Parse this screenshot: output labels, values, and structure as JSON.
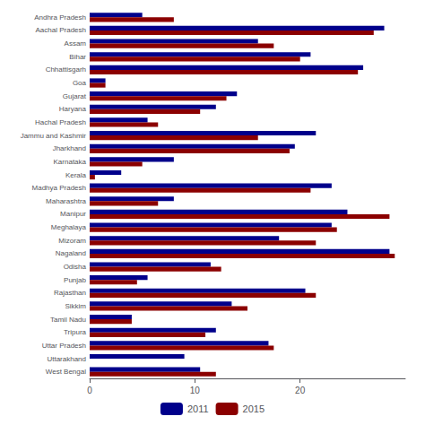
{
  "chart_data": {
    "type": "bar",
    "orientation": "horizontal",
    "categories": [
      "Andhra Pradesh",
      "Aachal Pradesh",
      "Assam",
      "Bihar",
      "Chhattisgarh",
      "Goa",
      "Gujarat",
      "Haryana",
      "Hachal Pradesh",
      "Jammu and Kashmir",
      "Jharkhand",
      "Karnataka",
      "Kerala",
      "Madhya Pradesh",
      "Maharashtra",
      "Manipur",
      "Meghalaya",
      "Mizoram",
      "Nagaland",
      "Odisha",
      "Punjab",
      "Rajasthan",
      "Sikkim",
      "Tamil Nadu",
      "Tripura",
      "Uttar Pradesh",
      "Uttarakhand",
      "West Bengal"
    ],
    "series": [
      {
        "name": "2011",
        "color": "#00008B",
        "values": [
          5.0,
          28.0,
          16.0,
          21.0,
          26.0,
          1.5,
          14.0,
          12.0,
          5.5,
          21.5,
          19.5,
          8.0,
          3.0,
          23.0,
          8.0,
          24.5,
          23.0,
          18.0,
          28.5,
          11.5,
          5.5,
          20.5,
          13.5,
          4.0,
          12.0,
          17.0,
          9.0,
          10.5
        ]
      },
      {
        "name": "2015",
        "color": "#8B0000",
        "values": [
          8.0,
          27.0,
          17.5,
          20.0,
          25.5,
          1.5,
          13.0,
          10.5,
          6.5,
          16.0,
          19.0,
          5.0,
          0.5,
          21.0,
          6.5,
          28.5,
          23.5,
          21.5,
          29.0,
          12.5,
          4.5,
          21.5,
          15.0,
          4.0,
          11.0,
          17.5,
          0.0,
          12.0
        ]
      }
    ],
    "xlim": [
      0,
      30
    ],
    "xticks": [
      0,
      10,
      20
    ],
    "grid": false,
    "legend": "bottom"
  }
}
